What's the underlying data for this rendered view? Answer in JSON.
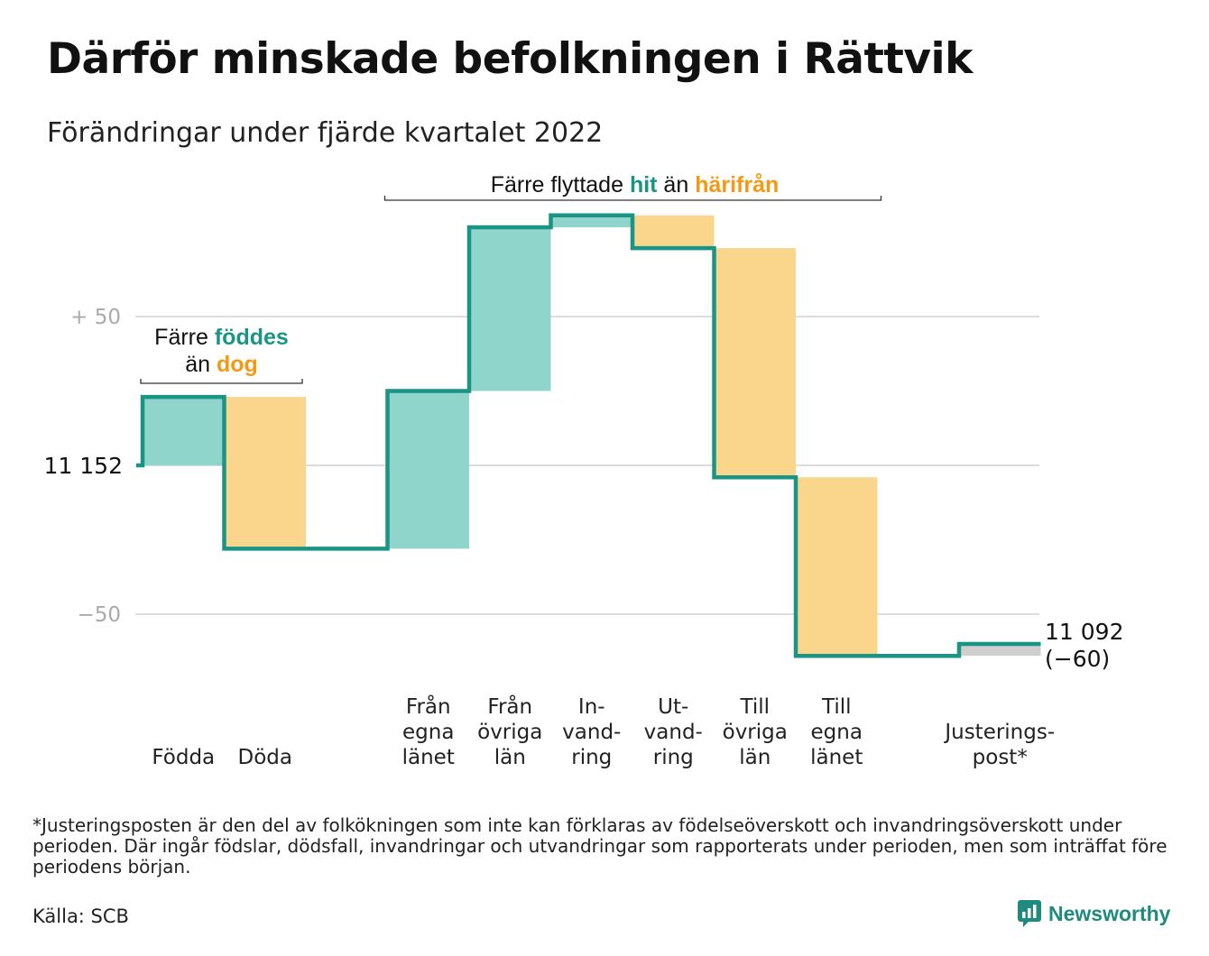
{
  "title": "Därför minskade befolkningen i Rättvik",
  "subtitle": "Förändringar under fjärde kvartalet 2022",
  "chart_data": {
    "type": "waterfall",
    "start_value": 11152,
    "end_value": 11092,
    "end_label": "11 092",
    "end_change_label": "(−60)",
    "start_label": "11 152",
    "ylim": [
      -78,
      86
    ],
    "yticks": [
      {
        "value": 50,
        "label": "+ 50"
      },
      {
        "value": 0,
        "label": ""
      },
      {
        "value": -50,
        "label": "−50"
      }
    ],
    "steps": [
      {
        "label": [
          "",
          "",
          "Födda"
        ],
        "change": 23,
        "kind": "in"
      },
      {
        "label": [
          "",
          "",
          "Döda"
        ],
        "change": -51,
        "kind": "out"
      },
      {
        "label": [
          "",
          "",
          ""
        ],
        "change": 0,
        "kind": "none"
      },
      {
        "label": [
          "Från",
          "egna",
          "länet"
        ],
        "change": 53,
        "kind": "in"
      },
      {
        "label": [
          "Från",
          "övriga",
          "län"
        ],
        "change": 55,
        "kind": "in"
      },
      {
        "label": [
          "In-",
          "vand-",
          "ring"
        ],
        "change": 4,
        "kind": "in"
      },
      {
        "label": [
          "Ut-",
          "vand-",
          "ring"
        ],
        "change": -11,
        "kind": "out"
      },
      {
        "label": [
          "Till",
          "övriga",
          "län"
        ],
        "change": -77,
        "kind": "out"
      },
      {
        "label": [
          "Till",
          "egna",
          "länet"
        ],
        "change": -60,
        "kind": "out"
      },
      {
        "label": [
          "",
          "",
          ""
        ],
        "change": 0,
        "kind": "none"
      },
      {
        "label": [
          "Justerings-",
          "post*"
        ],
        "change": 4,
        "kind": "adjust"
      }
    ],
    "colors": {
      "in": "#8fd5cb",
      "out": "#fad58c",
      "adjust": "#cfcfcf",
      "line": "#1a9484",
      "grid": "#dddddd"
    },
    "annotations": [
      {
        "id": "births",
        "lines": [
          [
            {
              "text": "Färre ",
              "style": "plain"
            },
            {
              "text": "föddes",
              "style": "teal"
            }
          ],
          [
            {
              "text": "än ",
              "style": "plain"
            },
            {
              "text": "dog",
              "style": "orange"
            }
          ]
        ]
      },
      {
        "id": "migration",
        "lines": [
          [
            {
              "text": "Färre flyttade ",
              "style": "plain"
            },
            {
              "text": "hit",
              "style": "teal"
            },
            {
              "text": " än ",
              "style": "plain"
            },
            {
              "text": "härifrån",
              "style": "orange"
            }
          ]
        ]
      }
    ]
  },
  "footnote": "*Justeringsposten är den del av folkökningen som inte kan förklaras av födelseöverskott och invandringsöverskott under perioden. Där ingår födslar, dödsfall, invandringar och utvandringar som rapporterats under perioden, men som inträffat före periodens början.",
  "source": "Källa: SCB",
  "brand": "Newsworthy",
  "brand_icon": "bar-chart-speech-icon"
}
